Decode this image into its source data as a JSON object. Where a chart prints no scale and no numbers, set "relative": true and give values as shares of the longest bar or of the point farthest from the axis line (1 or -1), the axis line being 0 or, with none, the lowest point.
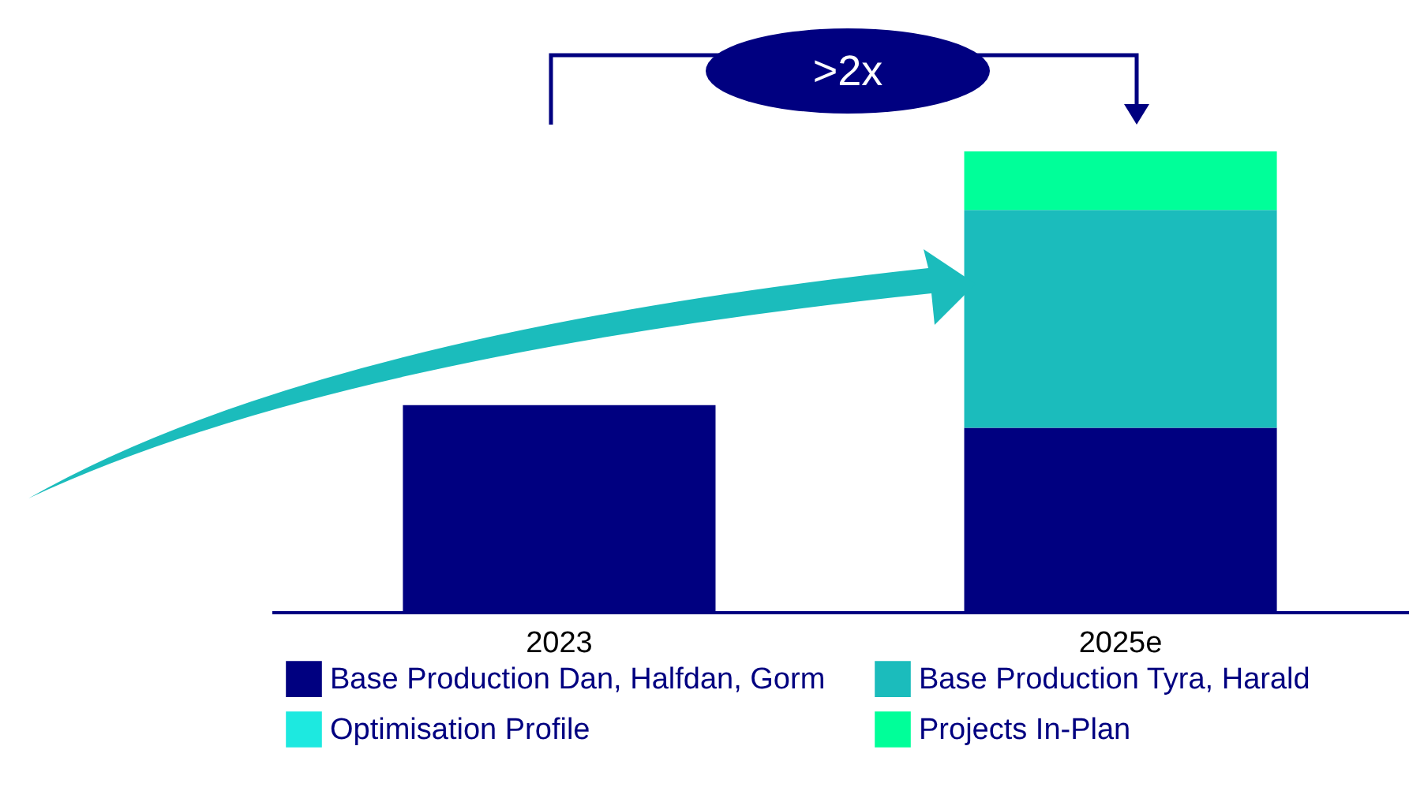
{
  "chart_data": {
    "type": "bar",
    "stacked": true,
    "relative": true,
    "categories": [
      "2023",
      "2025e"
    ],
    "series": [
      {
        "name": "Base Production Dan, Halfdan, Gorm",
        "color": "#000080",
        "values": [
          0.449,
          0.4
        ]
      },
      {
        "name": "Base Production Tyra, Harald",
        "color": "#1bbcbc",
        "values": [
          null,
          0.473
        ]
      },
      {
        "name": "Optimisation Profile",
        "color": "#1de9e0",
        "values": [
          null,
          null
        ]
      },
      {
        "name": "Projects In-Plan",
        "color": "#00ff99",
        "values": [
          null,
          0.127
        ]
      }
    ],
    "annotations": [
      ">2x"
    ],
    "legend": "bottom",
    "grid": false
  }
}
